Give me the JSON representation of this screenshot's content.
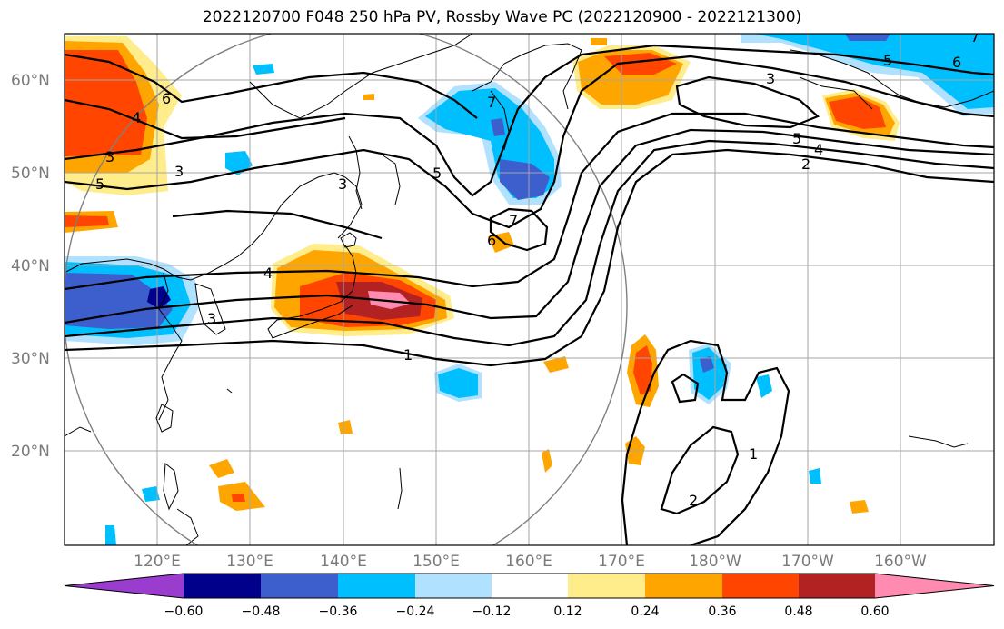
{
  "title": "2022120700 F048 250 hPa PV, Rossby Wave PC (2022120900 - 2022121300)",
  "latitude_labels": [
    "60°N",
    "50°N",
    "40°N",
    "30°N",
    "20°N"
  ],
  "longitude_labels": [
    "120°E",
    "130°E",
    "140°E",
    "150°E",
    "160°E",
    "170°E",
    "180°W",
    "170°W",
    "160°W"
  ],
  "colorbar": {
    "tick_labels": [
      "−0.60",
      "−0.48",
      "−0.36",
      "−0.24",
      "−0.12",
      "0.12",
      "0.24",
      "0.36",
      "0.48",
      "0.60"
    ],
    "colors": [
      "#9a3ccd",
      "#00008b",
      "#3c5fcd",
      "#00bfff",
      "#b0e2ff",
      "#ffffff",
      "#ffec8b",
      "#ffa500",
      "#ff4500",
      "#b22222",
      "#ff8bb0"
    ]
  },
  "contour_labels": [
    "1",
    "2",
    "3",
    "4",
    "5",
    "6",
    "7"
  ],
  "colors": {
    "pos_low": "#ffec8b",
    "pos_mid": "#ffa500",
    "pos_high": "#ff4500",
    "pos_vhigh": "#b22222",
    "pos_max": "#ff8bb0",
    "neg_low": "#b0e2ff",
    "neg_mid": "#00bfff",
    "neg_high": "#3c5fcd",
    "neg_vhigh": "#00008b"
  }
}
